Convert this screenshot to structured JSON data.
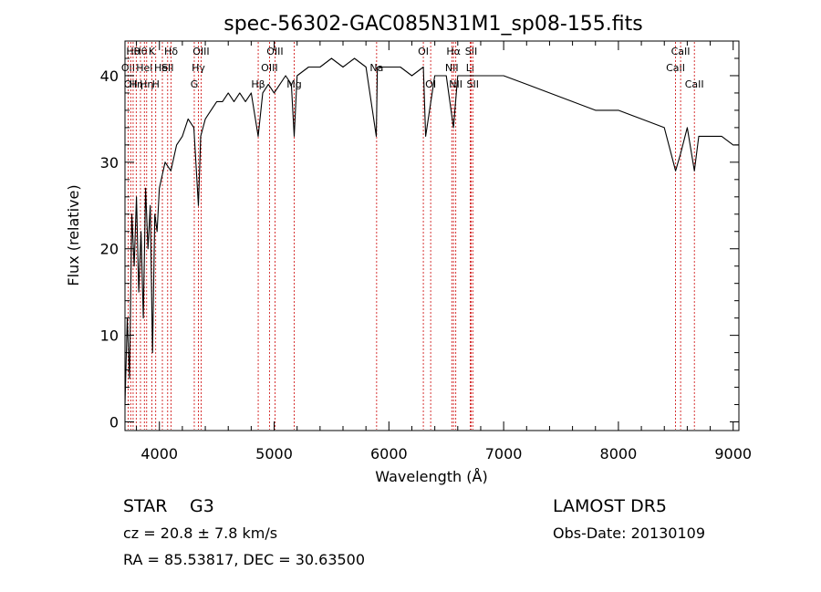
{
  "chart_data": {
    "type": "line",
    "title": "spec-56302-GAC085N31M1_sp08-155.fits",
    "xlabel": "Wavelength (Å)",
    "ylabel": "Flux (relative)",
    "xlim": [
      3700,
      9050
    ],
    "ylim": [
      -1,
      44
    ],
    "xticks": [
      4000,
      5000,
      6000,
      7000,
      8000,
      9000
    ],
    "yticks": [
      0,
      10,
      20,
      30,
      40
    ],
    "grid": false,
    "series": [
      {
        "values_x": [
          3700,
          3720,
          3740,
          3760,
          3780,
          3800,
          3820,
          3840,
          3860,
          3880,
          3900,
          3920,
          3940,
          3960,
          3980,
          4000,
          4050,
          4100,
          4150,
          4200,
          4250,
          4300,
          4340,
          4360,
          4400,
          4450,
          4500,
          4550,
          4600,
          4650,
          4700,
          4750,
          4800,
          4861,
          4900,
          4950,
          5000,
          5050,
          5100,
          5150,
          5175,
          5200,
          5300,
          5400,
          5500,
          5600,
          5700,
          5800,
          5890,
          5900,
          6000,
          6100,
          6200,
          6300,
          6320,
          6400,
          6500,
          6563,
          6600,
          6700,
          6800,
          6900,
          7000,
          7200,
          7400,
          7600,
          7800,
          8000,
          8200,
          8400,
          8498,
          8542,
          8600,
          8662,
          8700,
          8800,
          8900,
          9000,
          9050
        ],
        "values_y": [
          2,
          12,
          5,
          24,
          18,
          26,
          15,
          22,
          12,
          27,
          20,
          25,
          8,
          24,
          22,
          27,
          30,
          29,
          32,
          33,
          35,
          34,
          25,
          33,
          35,
          36,
          37,
          37,
          38,
          37,
          38,
          37,
          38,
          33,
          38,
          39,
          38,
          39,
          40,
          39,
          33,
          40,
          41,
          41,
          42,
          41,
          42,
          41,
          33,
          41,
          41,
          41,
          40,
          41,
          33,
          40,
          40,
          34,
          40,
          40,
          40,
          40,
          40,
          39,
          38,
          37,
          36,
          36,
          35,
          34,
          29,
          31,
          34,
          29,
          33,
          33,
          33,
          32,
          32
        ]
      }
    ],
    "line_markers": [
      {
        "x": 3727,
        "label": "OII",
        "row": 1
      },
      {
        "x": 3750,
        "label": "OII",
        "row": 2
      },
      {
        "x": 3771,
        "label": "Hθ",
        "row": 0
      },
      {
        "x": 3798,
        "label": "Hη",
        "row": 2
      },
      {
        "x": 3835,
        "label": "Hθ",
        "row": 0
      },
      {
        "x": 3869,
        "label": "Hel",
        "row": 1
      },
      {
        "x": 3889,
        "label": "Hη",
        "row": 2
      },
      {
        "x": 3934,
        "label": "K",
        "row": 0
      },
      {
        "x": 3968,
        "label": "H",
        "row": 2
      },
      {
        "x": 4026,
        "label": "Hel",
        "row": 1
      },
      {
        "x": 4072,
        "label": "SII",
        "row": 1
      },
      {
        "x": 4102,
        "label": "Hδ",
        "row": 0
      },
      {
        "x": 4304,
        "label": "G",
        "row": 2
      },
      {
        "x": 4340,
        "label": "Hγ",
        "row": 1
      },
      {
        "x": 4363,
        "label": "OIII",
        "row": 0
      },
      {
        "x": 4861,
        "label": "Hβ",
        "row": 2
      },
      {
        "x": 4959,
        "label": "OIII",
        "row": 1
      },
      {
        "x": 5007,
        "label": "OIII",
        "row": 0
      },
      {
        "x": 5175,
        "label": "Mg",
        "row": 2
      },
      {
        "x": 5893,
        "label": "Na",
        "row": 1
      },
      {
        "x": 6300,
        "label": "OI",
        "row": 0
      },
      {
        "x": 6364,
        "label": "OI",
        "row": 2
      },
      {
        "x": 6548,
        "label": "NII",
        "row": 1
      },
      {
        "x": 6563,
        "label": "Hα",
        "row": 0
      },
      {
        "x": 6583,
        "label": "NII",
        "row": 2
      },
      {
        "x": 6708,
        "label": "Li",
        "row": 1
      },
      {
        "x": 6717,
        "label": "SII",
        "row": 0
      },
      {
        "x": 6731,
        "label": "SII",
        "row": 2
      },
      {
        "x": 8498,
        "label": "CaII",
        "row": 1
      },
      {
        "x": 8542,
        "label": "CaII",
        "row": 0
      },
      {
        "x": 8662,
        "label": "CaII",
        "row": 2
      }
    ]
  },
  "info": {
    "class": "STAR",
    "subclass": "G3",
    "survey": "LAMOST  DR5",
    "cz": "cz = 20.8 ± 7.8 km/s",
    "obs_date": "Obs-Date: 20130109",
    "coords": "RA =  85.53817, DEC =  30.63500"
  },
  "colors": {
    "spectrum": "#000000",
    "marker_line": "#cc0000"
  }
}
